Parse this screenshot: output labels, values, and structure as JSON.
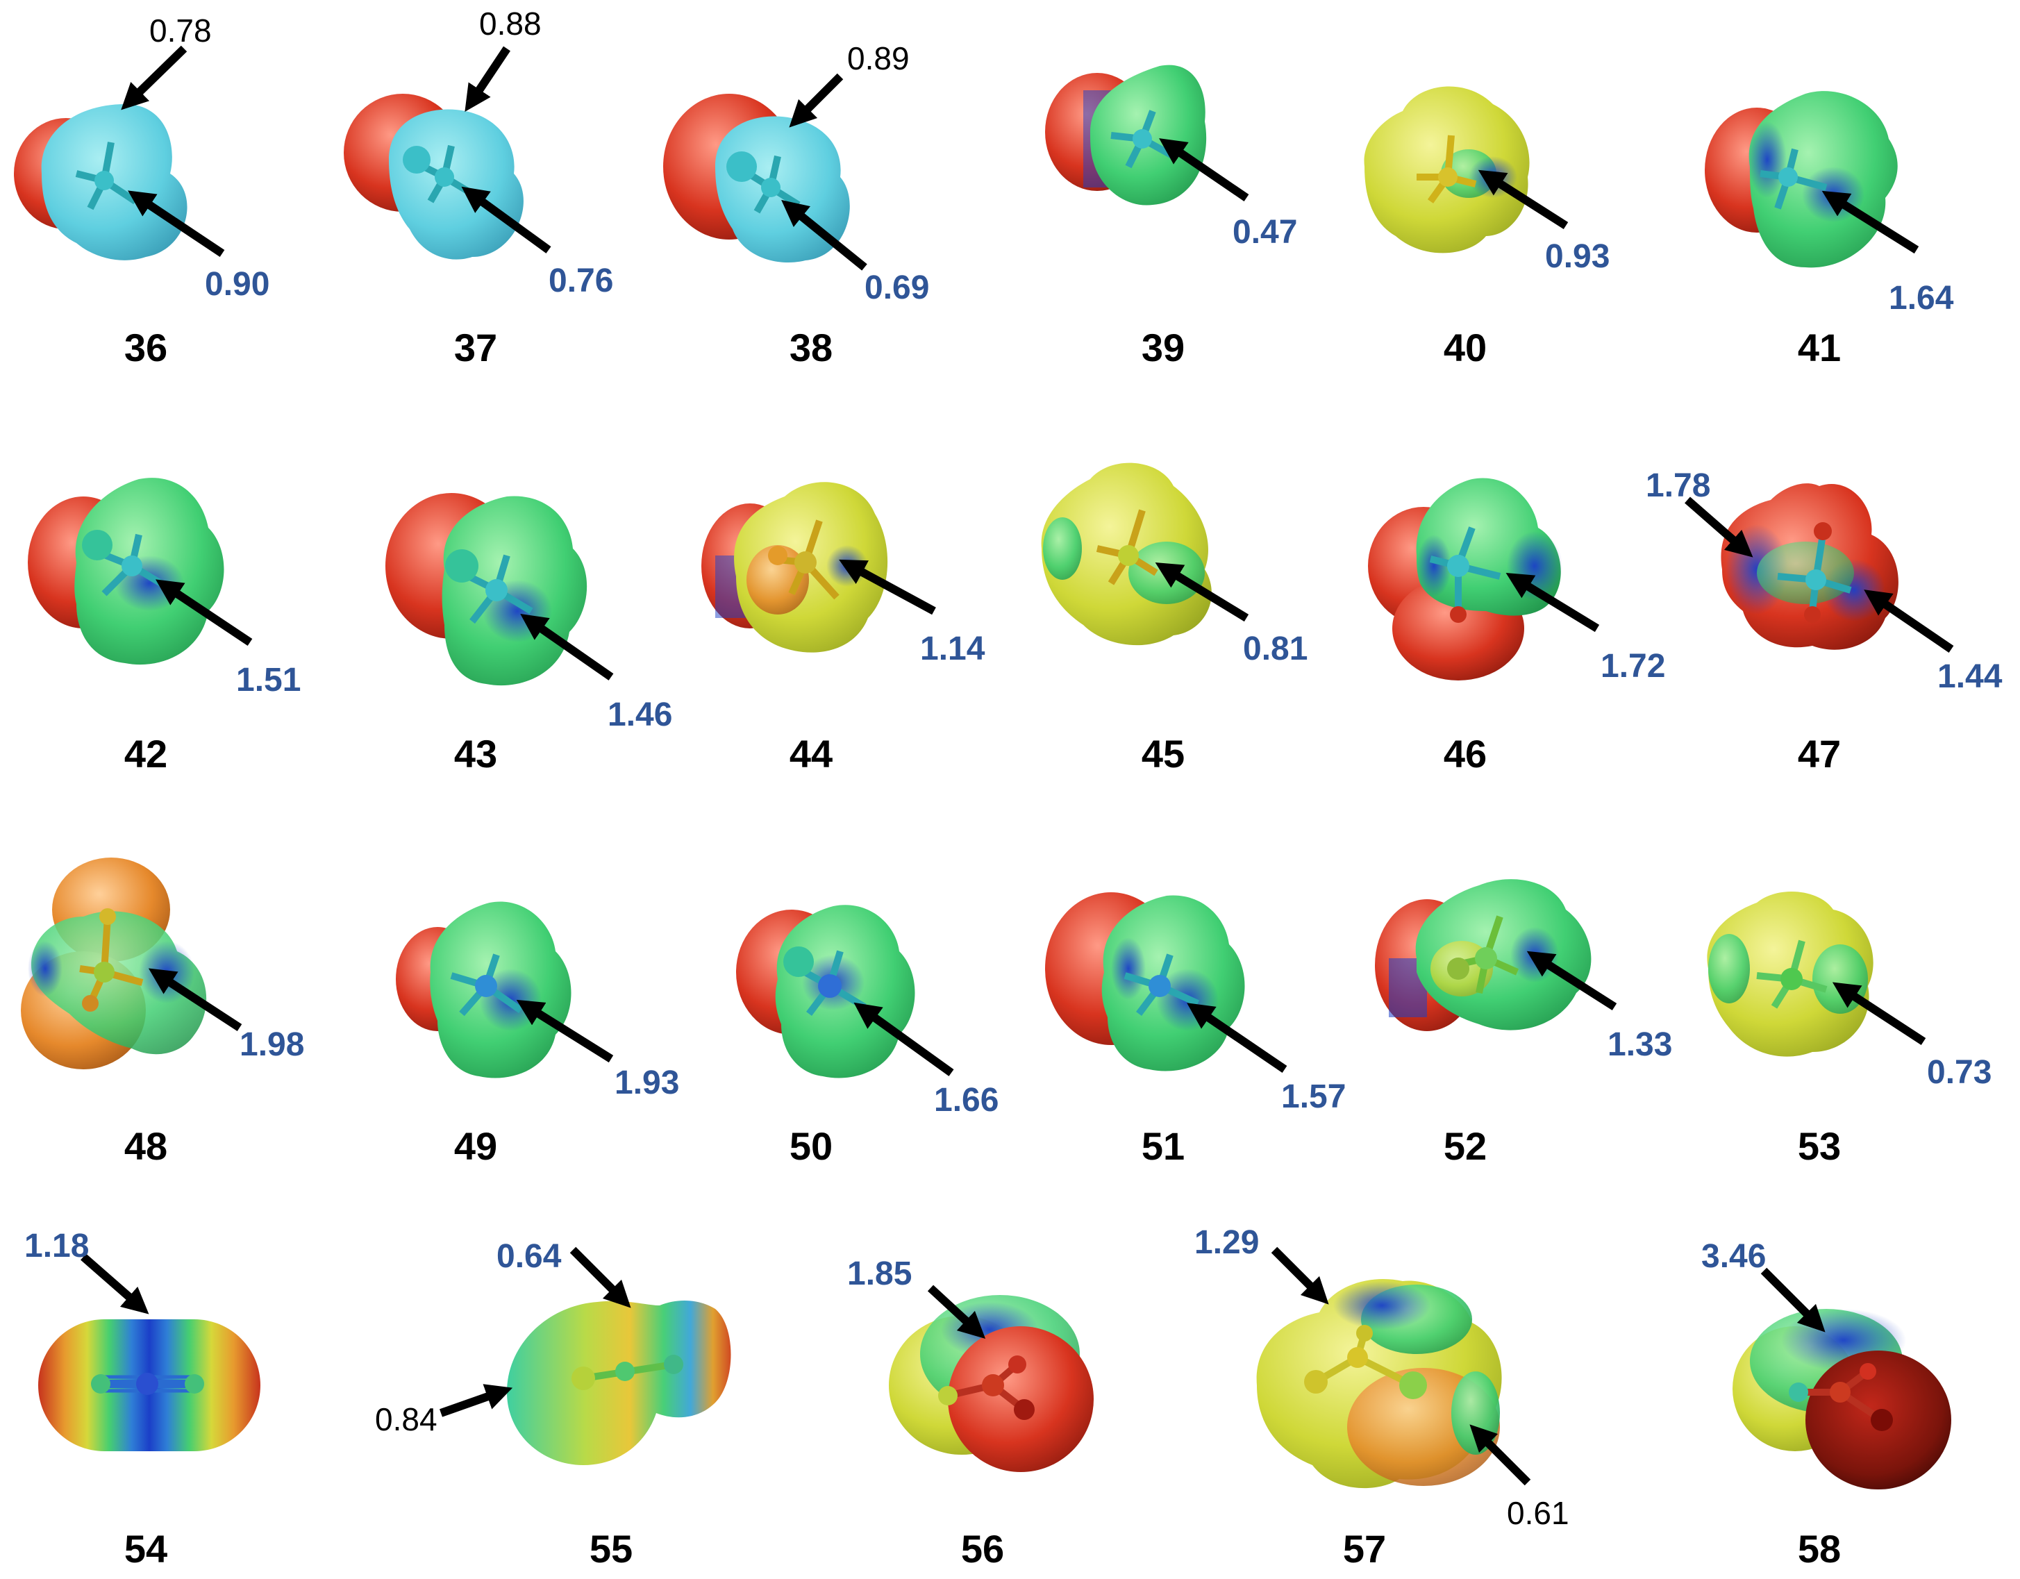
{
  "panels": [
    {
      "id": "36",
      "values": [
        {
          "text": "0.78",
          "style": "black"
        },
        {
          "text": "0.90",
          "style": "blue"
        }
      ]
    },
    {
      "id": "37",
      "values": [
        {
          "text": "0.88",
          "style": "black"
        },
        {
          "text": "0.76",
          "style": "blue"
        }
      ]
    },
    {
      "id": "38",
      "values": [
        {
          "text": "0.89",
          "style": "black"
        },
        {
          "text": "0.69",
          "style": "blue"
        }
      ]
    },
    {
      "id": "39",
      "values": [
        {
          "text": "0.47",
          "style": "blue"
        }
      ]
    },
    {
      "id": "40",
      "values": [
        {
          "text": "0.93",
          "style": "blue"
        }
      ]
    },
    {
      "id": "41",
      "values": [
        {
          "text": "1.64",
          "style": "blue"
        }
      ]
    },
    {
      "id": "42",
      "values": [
        {
          "text": "1.51",
          "style": "blue"
        }
      ]
    },
    {
      "id": "43",
      "values": [
        {
          "text": "1.46",
          "style": "blue"
        }
      ]
    },
    {
      "id": "44",
      "values": [
        {
          "text": "1.14",
          "style": "blue"
        }
      ]
    },
    {
      "id": "45",
      "values": [
        {
          "text": "0.81",
          "style": "blue"
        }
      ]
    },
    {
      "id": "46",
      "values": [
        {
          "text": "1.72",
          "style": "blue"
        }
      ]
    },
    {
      "id": "47",
      "values": [
        {
          "text": "1.78",
          "style": "blue"
        },
        {
          "text": "1.44",
          "style": "blue"
        }
      ]
    },
    {
      "id": "48",
      "values": [
        {
          "text": "1.98",
          "style": "blue"
        }
      ]
    },
    {
      "id": "49",
      "values": [
        {
          "text": "1.93",
          "style": "blue"
        }
      ]
    },
    {
      "id": "50",
      "values": [
        {
          "text": "1.66",
          "style": "blue"
        }
      ]
    },
    {
      "id": "51",
      "values": [
        {
          "text": "1.57",
          "style": "blue"
        }
      ]
    },
    {
      "id": "52",
      "values": [
        {
          "text": "1.33",
          "style": "blue"
        }
      ]
    },
    {
      "id": "53",
      "values": [
        {
          "text": "0.73",
          "style": "blue"
        }
      ]
    },
    {
      "id": "54",
      "values": [
        {
          "text": "1.18",
          "style": "blue"
        }
      ]
    },
    {
      "id": "55",
      "values": [
        {
          "text": "0.64",
          "style": "blue"
        },
        {
          "text": "0.84",
          "style": "black"
        }
      ]
    },
    {
      "id": "56",
      "values": [
        {
          "text": "1.85",
          "style": "blue"
        }
      ]
    },
    {
      "id": "57",
      "values": [
        {
          "text": "1.29",
          "style": "blue"
        },
        {
          "text": "0.61",
          "style": "black"
        }
      ]
    },
    {
      "id": "58",
      "values": [
        {
          "text": "3.46",
          "style": "blue"
        }
      ]
    }
  ],
  "colors": {
    "value_blue": "#2f5597",
    "value_black": "#000000",
    "arrow": "#000000",
    "surface_red": "#d42a1c",
    "surface_orange": "#e8892a",
    "surface_yellow": "#d8d83a",
    "surface_green": "#3fcf6e",
    "surface_cyan": "#5fd0d8",
    "surface_blue": "#1b3fc8",
    "surface_darkred": "#6a0f08"
  }
}
